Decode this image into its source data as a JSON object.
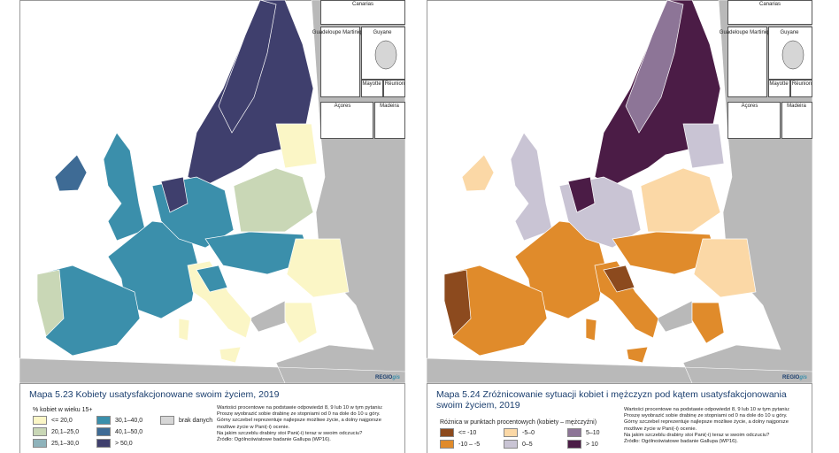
{
  "panels": [
    {
      "map": {
        "insets": [
          "Canarias",
          "Guadeloupe Martinique",
          "Guyane",
          "Mayotte",
          "Réunion",
          "Açores",
          "Madeira"
        ],
        "logo": {
          "main": "REGIO",
          "accent": "gis"
        }
      },
      "caption": "Mapa 5.23 Kobiety usatysfakcjonowane swoim życiem, 2019",
      "legend": {
        "title": "% kobiet w wieku 15+",
        "items": [
          {
            "label": "<= 20,0",
            "color": "#fbf6c6"
          },
          {
            "label": "20,1–25,0",
            "color": "#c9d7b6"
          },
          {
            "label": "25,1–30,0",
            "color": "#8fb3bb"
          },
          {
            "label": "30,1–40,0",
            "color": "#3b8fab"
          },
          {
            "label": "40,1–50,0",
            "color": "#3e6b95"
          },
          {
            "label": "> 50,0",
            "color": "#3f3f6d"
          },
          {
            "label": "brak danych",
            "color": "#d6d6d6"
          }
        ]
      },
      "notes": [
        "Wartości procentowe na podstawie odpowiedzi 8, 9 lub 10 w tym pytaniu:",
        "Proszę wyobrazić sobie drabinę ze stopniami od 0 na dole do 10 u góry.",
        "Górny szczebel reprezentuje najlepsze możliwe życie, a dolny najgorsze",
        "możliwe życie w Pani(-i) ocenie.",
        "Na jakim szczeblu drabiny stoi Pani(-i) teraz w swoim odczuciu?",
        "Źródło: Ogólnoświatowe badanie Gallupa (WP16)."
      ]
    },
    {
      "map": {
        "insets": [
          "Canarias",
          "Guadeloupe Martinique",
          "Guyane",
          "Mayotte",
          "Réunion",
          "Açores",
          "Madeira"
        ],
        "logo": {
          "main": "REGIO",
          "accent": "gis"
        }
      },
      "caption": "Mapa 5.24 Zróżnicowanie sytuacji kobiet i mężczyzn pod kątem usatysfakcjonowania swoim życiem, 2019",
      "legend": {
        "title": "Różnica w punktach procentowych (kobiety – mężczyźni)",
        "items": [
          {
            "label": "<= -10",
            "color": "#8c4a1e"
          },
          {
            "label": "-10 – -5",
            "color": "#e08b2b"
          },
          {
            "label": "-5–0",
            "color": "#fbd8a6"
          },
          {
            "label": "0–5",
            "color": "#c9c4d4"
          },
          {
            "label": "5–10",
            "color": "#8d7597"
          },
          {
            "label": "> 10",
            "color": "#4b1c46"
          }
        ]
      },
      "notes": [
        "Wartości procentowe na podstawie odpowiedzi 8, 9 lub 10 w tym pytaniu:",
        "Proszę wyobrazić sobie drabinę ze stopniami od 0 na dole do 10 u góry.",
        "Górny szczebel reprezentuje najlepsze możliwe życie, a dolny najgorsze",
        "możliwe życie w Pani(-i) ocenie.",
        "Na jakim szczeblu drabiny stoi Pani(-i) teraz w swoim odczuciu?",
        "Źródło: Ogólnoświatowe badanie Gallupa (WP16)."
      ]
    }
  ]
}
